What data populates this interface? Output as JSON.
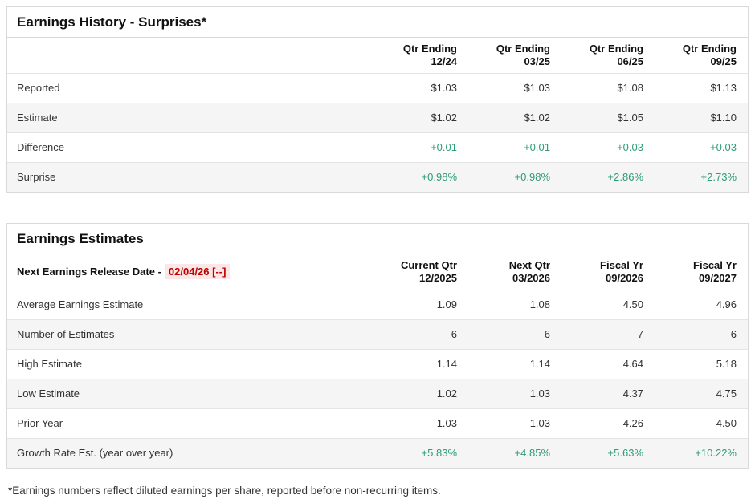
{
  "colors": {
    "positive_green": "#2e9c77",
    "alert_red_text": "#c00000",
    "alert_red_bg": "#fbe7e7",
    "stripe_gray": "#f5f5f5",
    "border_gray": "#d9d9d9"
  },
  "history_table": {
    "title": "Earnings History - Surprises*",
    "columns": [
      {
        "line1": "Qtr Ending",
        "line2": "12/24"
      },
      {
        "line1": "Qtr Ending",
        "line2": "03/25"
      },
      {
        "line1": "Qtr Ending",
        "line2": "06/25"
      },
      {
        "line1": "Qtr Ending",
        "line2": "09/25"
      }
    ],
    "rows": [
      {
        "label": "Reported",
        "values": [
          "$1.03",
          "$1.03",
          "$1.08",
          "$1.13"
        ]
      },
      {
        "label": "Estimate",
        "values": [
          "$1.02",
          "$1.02",
          "$1.05",
          "$1.10"
        ]
      },
      {
        "label": "Difference",
        "values": [
          "+0.01",
          "+0.01",
          "+0.03",
          "+0.03"
        ]
      },
      {
        "label": "Surprise",
        "values": [
          "+0.98%",
          "+0.98%",
          "+2.86%",
          "+2.73%"
        ]
      }
    ]
  },
  "estimates_table": {
    "title": "Earnings Estimates",
    "release_date_label": "Next Earnings Release Date -",
    "release_date_value": "02/04/26 [--]",
    "columns": [
      {
        "line1": "Current Qtr",
        "line2": "12/2025"
      },
      {
        "line1": "Next Qtr",
        "line2": "03/2026"
      },
      {
        "line1": "Fiscal Yr",
        "line2": "09/2026"
      },
      {
        "line1": "Fiscal Yr",
        "line2": "09/2027"
      }
    ],
    "rows": [
      {
        "label": "Average Earnings Estimate",
        "values": [
          "1.09",
          "1.08",
          "4.50",
          "4.96"
        ]
      },
      {
        "label": "Number of Estimates",
        "values": [
          "6",
          "6",
          "7",
          "6"
        ]
      },
      {
        "label": "High Estimate",
        "values": [
          "1.14",
          "1.14",
          "4.64",
          "5.18"
        ]
      },
      {
        "label": "Low Estimate",
        "values": [
          "1.02",
          "1.03",
          "4.37",
          "4.75"
        ]
      },
      {
        "label": "Prior Year",
        "values": [
          "1.03",
          "1.03",
          "4.26",
          "4.50"
        ]
      },
      {
        "label": "Growth Rate Est. (year over year)",
        "values": [
          "+5.83%",
          "+4.85%",
          "+5.63%",
          "+10.22%"
        ]
      }
    ]
  },
  "footnote": "*Earnings numbers reflect diluted earnings per share, reported before non-recurring items."
}
